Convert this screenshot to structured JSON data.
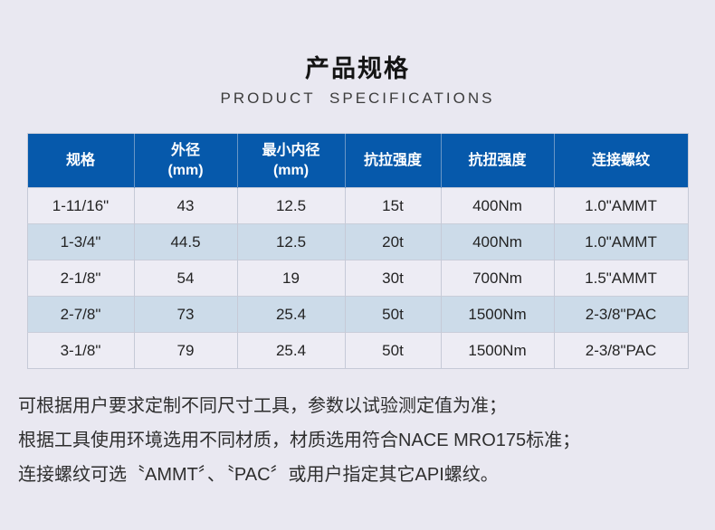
{
  "page": {
    "title": "产品规格",
    "subtitle": "PRODUCT SPECIFICATIONS"
  },
  "table": {
    "headers": [
      {
        "label": "规格",
        "sub": ""
      },
      {
        "label": "外径",
        "sub": "(mm)"
      },
      {
        "label": "最小内径",
        "sub": "(mm)"
      },
      {
        "label": "抗拉强度",
        "sub": ""
      },
      {
        "label": "抗扭强度",
        "sub": ""
      },
      {
        "label": "连接螺纹",
        "sub": ""
      }
    ],
    "rows": [
      [
        "1-11/16\"",
        "43",
        "12.5",
        "15t",
        "400Nm",
        "1.0\"AMMT"
      ],
      [
        "1-3/4\"",
        "44.5",
        "12.5",
        "20t",
        "400Nm",
        "1.0\"AMMT"
      ],
      [
        "2-1/8\"",
        "54",
        "19",
        "30t",
        "700Nm",
        "1.5\"AMMT"
      ],
      [
        "2-7/8\"",
        "73",
        "25.4",
        "50t",
        "1500Nm",
        "2-3/8\"PAC"
      ],
      [
        "3-1/8\"",
        "79",
        "25.4",
        "50t",
        "1500Nm",
        "2-3/8\"PAC"
      ]
    ]
  },
  "notes": [
    "可根据用户要求定制不同尺寸工具，参数以试验测定值为准；",
    "根据工具使用环境选用不同材质，材质选用符合NACE MRO175标准；",
    "连接螺纹可选〝AMMT〞、〝PAC〞或用户指定其它API螺纹。"
  ],
  "colors": {
    "page_bg": "#e9e8f1",
    "header_bg": "#0659ab",
    "header_text": "#ffffff",
    "row_odd_bg": "#edecf4",
    "row_even_bg": "#ccdbe9",
    "cell_text": "#232323",
    "note_text": "#2e2e2e"
  }
}
